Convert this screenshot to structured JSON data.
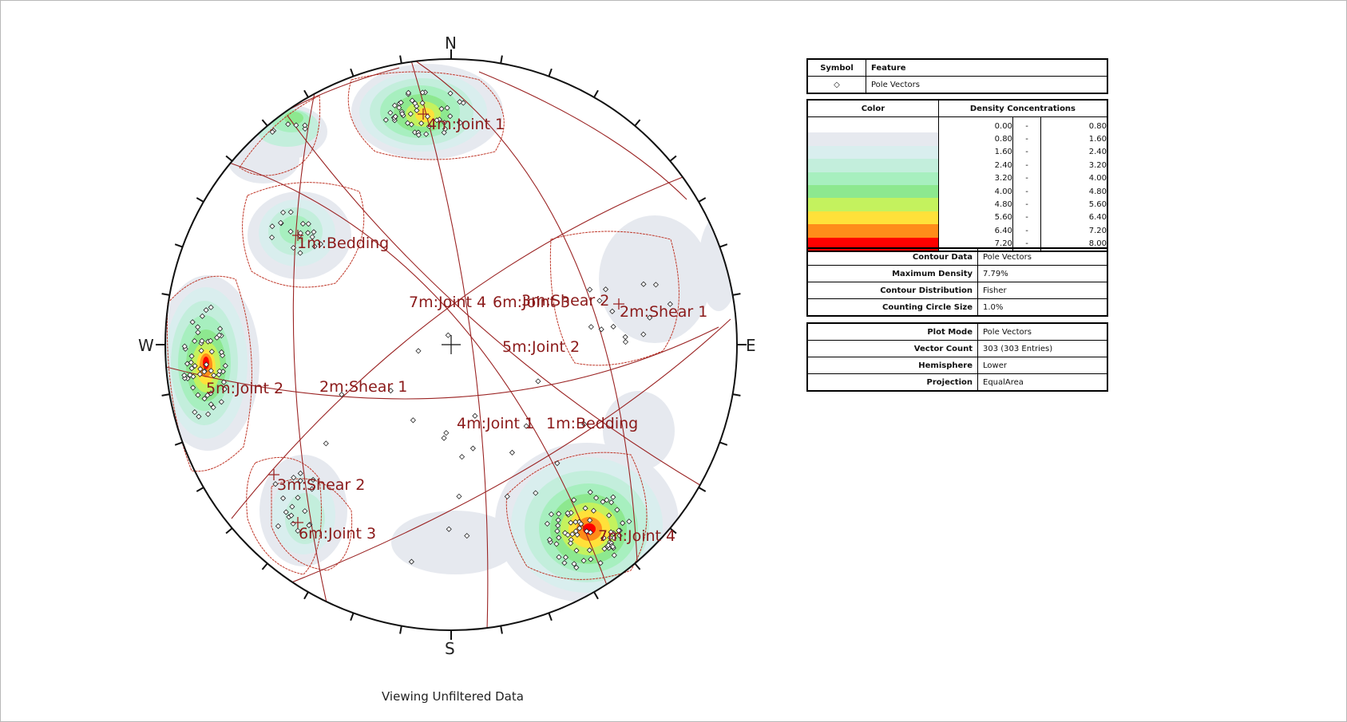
{
  "stereonet": {
    "directions": {
      "north": "N",
      "south": "S",
      "east": "E",
      "west": "W"
    },
    "plane_labels": [
      {
        "id": "4m",
        "text": "4m:Joint 1"
      },
      {
        "id": "1m",
        "text": "1m:Bedding"
      },
      {
        "id": "5m",
        "text": "5m:Joint 2"
      },
      {
        "id": "2m",
        "text": "2m:Shear 1"
      },
      {
        "id": "3m",
        "text": "3m:Shear 2"
      },
      {
        "id": "6m",
        "text": "6m:Joint 3"
      },
      {
        "id": "7m",
        "text": "7m:Joint 4"
      }
    ],
    "intersection_labels": [
      "7m:Joint 4",
      "6m:Joint 3",
      "3m:Shear 2",
      "2m:Shear 1",
      "5m:Joint 2",
      "2m:Shear 1",
      "4m:Joint 1",
      "1m:Bedding"
    ],
    "footer": "Viewing Unfiltered Data"
  },
  "legend": {
    "feature_table": {
      "headers": {
        "symbol": "Symbol",
        "feature": "Feature"
      },
      "rows": [
        {
          "symbol": "◇",
          "feature": "Pole Vectors"
        }
      ]
    },
    "density_table": {
      "headers": {
        "color": "Color",
        "density": "Density Concentrations"
      },
      "dash": "-",
      "ranges": [
        {
          "lo": "0.00",
          "hi": "0.80",
          "color": "#ffffff"
        },
        {
          "lo": "0.80",
          "hi": "1.60",
          "color": "#e6e9ef"
        },
        {
          "lo": "1.60",
          "hi": "2.40",
          "color": "#d9eeee"
        },
        {
          "lo": "2.40",
          "hi": "3.20",
          "color": "#c3eedc"
        },
        {
          "lo": "3.20",
          "hi": "4.00",
          "color": "#a7efbf"
        },
        {
          "lo": "4.00",
          "hi": "4.80",
          "color": "#8de88f"
        },
        {
          "lo": "4.80",
          "hi": "5.60",
          "color": "#c4f25e"
        },
        {
          "lo": "5.60",
          "hi": "6.40",
          "color": "#ffe13a"
        },
        {
          "lo": "6.40",
          "hi": "7.20",
          "color": "#ff8c1a"
        },
        {
          "lo": "7.20",
          "hi": "8.00",
          "color": "#ff0000"
        }
      ]
    },
    "contour_table": [
      {
        "key": "Contour Data",
        "value": "Pole Vectors"
      },
      {
        "key": "Maximum Density",
        "value": "7.79%"
      },
      {
        "key": "Contour Distribution",
        "value": "Fisher"
      },
      {
        "key": "Counting Circle Size",
        "value": "1.0%"
      }
    ],
    "plot_table": [
      {
        "key": "Plot Mode",
        "value": "Pole Vectors"
      },
      {
        "key": "Vector Count",
        "value": "303 (303 Entries)"
      },
      {
        "key": "Hemisphere",
        "value": "Lower"
      },
      {
        "key": "Projection",
        "value": "EqualArea"
      }
    ]
  },
  "colors": {
    "plane_color": "#9b2424",
    "label_color": "#8b1a1a",
    "marker_outline": "#222222"
  }
}
